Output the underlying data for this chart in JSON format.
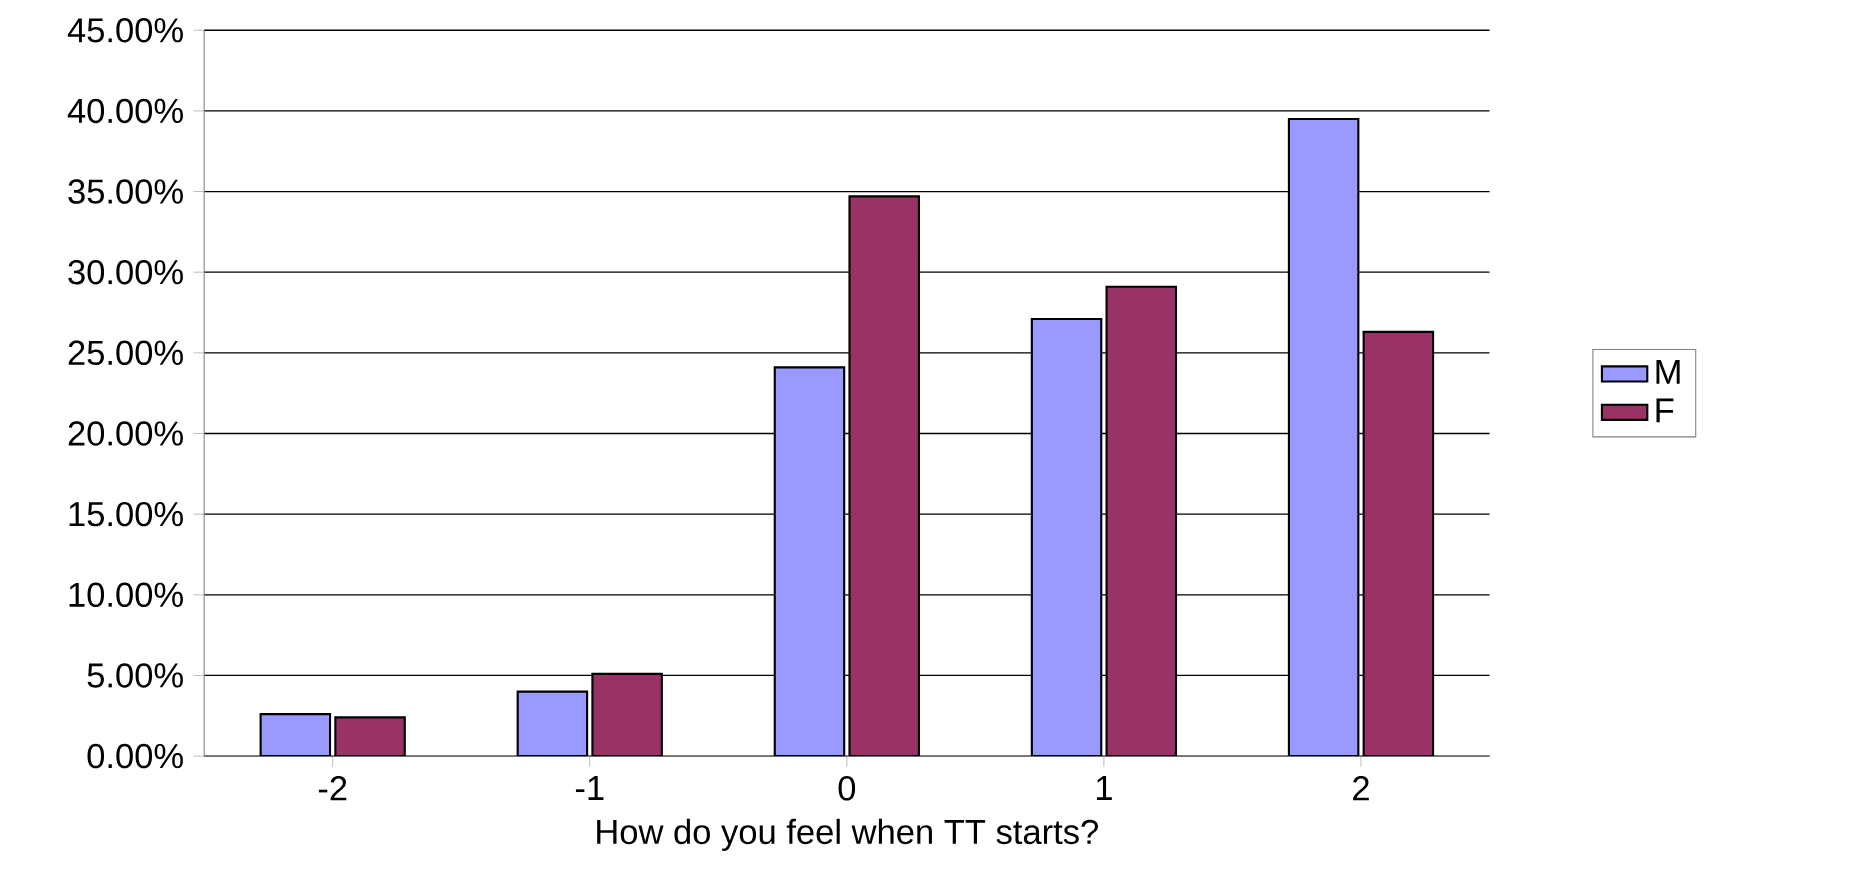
{
  "chart_data": {
    "type": "bar",
    "xlabel": "How do you feel when TT starts?",
    "categories": [
      "-2",
      "-1",
      "0",
      "1",
      "2"
    ],
    "series": [
      {
        "name": "M",
        "color": "#9999ff",
        "values": [
          2.6,
          4.0,
          24.1,
          27.1,
          39.5
        ]
      },
      {
        "name": "F",
        "color": "#993366",
        "values": [
          2.4,
          5.1,
          34.7,
          29.1,
          26.3
        ]
      }
    ],
    "ylim": [
      0,
      45
    ],
    "yticks": [
      {
        "value": 0,
        "label": "0.00%"
      },
      {
        "value": 5,
        "label": "5.00%"
      },
      {
        "value": 10,
        "label": "10.00%"
      },
      {
        "value": 15,
        "label": "15.00%"
      },
      {
        "value": 20,
        "label": "20.00%"
      },
      {
        "value": 25,
        "label": "25.00%"
      },
      {
        "value": 30,
        "label": "30.00%"
      },
      {
        "value": 35,
        "label": "35.00%"
      },
      {
        "value": 40,
        "label": "40.00%"
      },
      {
        "value": 45,
        "label": "45.00%"
      }
    ],
    "grid": "y",
    "legend": "right"
  }
}
